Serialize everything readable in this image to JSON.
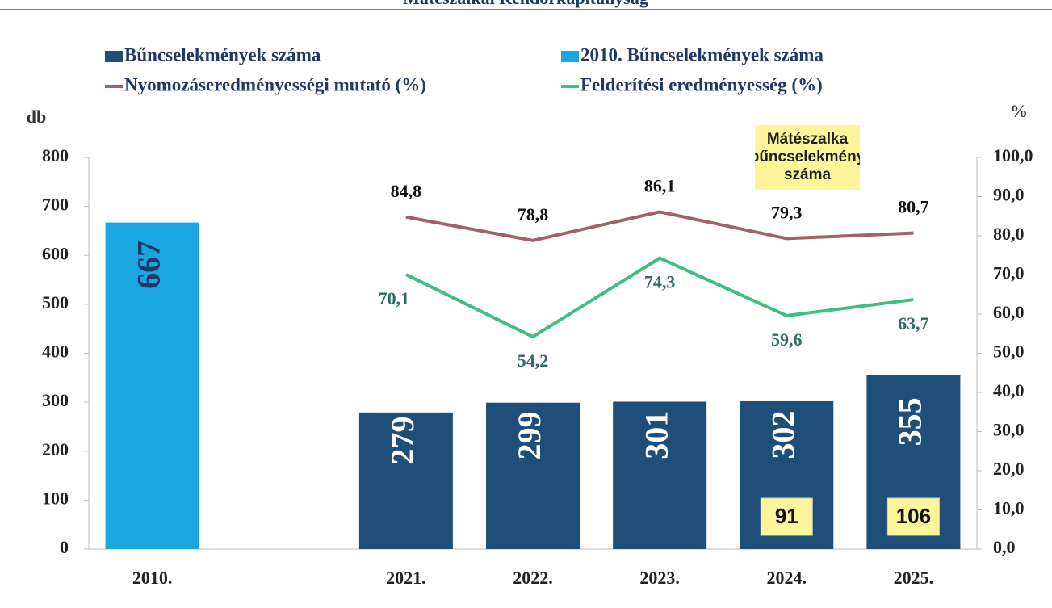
{
  "chart_data": {
    "type": "bar_line",
    "title": "Mátészalkai Rendőrkapitányság",
    "y_label": "db",
    "y2_label": "%",
    "categories": [
      "2010.",
      null,
      "2021.",
      "2022.",
      "2023.",
      "2024.",
      "2025."
    ],
    "series": [
      {
        "name": "Bűncselekmények száma",
        "type": "bar",
        "color": "#1f4e79",
        "values": [
          null,
          null,
          279,
          299,
          301,
          302,
          355
        ]
      },
      {
        "name": "2010. Bűncselekmények száma",
        "type": "bar",
        "color": "#1aa7e0",
        "values": [
          667,
          null,
          null,
          null,
          null,
          null,
          null
        ]
      },
      {
        "name": "Nyomozáseredményességi mutató (%)",
        "type": "line",
        "axis": "y2",
        "color": "#a0616a",
        "values": [
          null,
          null,
          84.8,
          78.8,
          86.1,
          79.3,
          80.7
        ],
        "value_labels": [
          null,
          null,
          "84,8",
          "78,8",
          "86,1",
          "79,3",
          "80,7"
        ]
      },
      {
        "name": "Felderítési eredményesség (%)",
        "type": "line",
        "axis": "y2",
        "color": "#3dbf80",
        "values": [
          null,
          null,
          70.1,
          54.2,
          74.3,
          59.6,
          63.7
        ],
        "value_labels": [
          null,
          null,
          "70,1",
          "54,2",
          "74,3",
          "59,6",
          "63,7"
        ]
      }
    ],
    "annotation": {
      "label": "Mátészalka bűncselekmény száma",
      "values": [
        null,
        null,
        null,
        null,
        null,
        91,
        106
      ]
    },
    "ylim": [
      0,
      800
    ],
    "yticks": [
      0,
      100,
      200,
      300,
      400,
      500,
      600,
      700,
      800
    ],
    "y2lim": [
      0,
      100
    ],
    "y2ticks": [
      {
        "value": 0,
        "label": "0,0"
      },
      {
        "value": 10,
        "label": "10,0"
      },
      {
        "value": 20,
        "label": "20,0"
      },
      {
        "value": 30,
        "label": "30,0"
      },
      {
        "value": 40,
        "label": "40,0"
      },
      {
        "value": 50,
        "label": "50,0"
      },
      {
        "value": 60,
        "label": "60,0"
      },
      {
        "value": 70,
        "label": "70,0"
      },
      {
        "value": 80,
        "label": "80,0"
      },
      {
        "value": 90,
        "label": "90,0"
      },
      {
        "value": 100,
        "label": "100,0"
      }
    ],
    "grid": false
  }
}
